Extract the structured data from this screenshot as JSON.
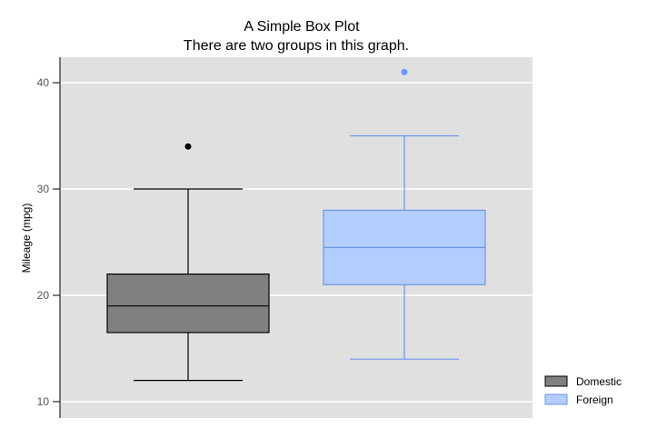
{
  "chart_data": {
    "type": "box",
    "title": "A Simple Box Plot",
    "subtitle": "There are two groups in this graph.",
    "xlabel": "",
    "ylabel": "Mileage (mpg)",
    "ylim": [
      8,
      42.5
    ],
    "yticks": [
      "10",
      "20",
      "30",
      "40"
    ],
    "grid": true,
    "legend_position": "bottom-right",
    "series": [
      {
        "name": "Domestic",
        "min": 12,
        "q1": 16.5,
        "median": 19,
        "q3": 22,
        "max": 30,
        "outliers": [
          34
        ],
        "fill": "#808080",
        "stroke": "#000000",
        "outlier_color": "#000000"
      },
      {
        "name": "Foreign",
        "min": 14,
        "q1": 21,
        "median": 24.5,
        "q3": 28,
        "max": 35,
        "outliers": [
          41
        ],
        "fill": "#b3cdff",
        "stroke": "#6a96eb",
        "outlier_color": "#6a96ff"
      }
    ],
    "colors": {
      "panel": "#e0e0e0",
      "grid": "#ffffff",
      "axis": "#000000"
    }
  }
}
